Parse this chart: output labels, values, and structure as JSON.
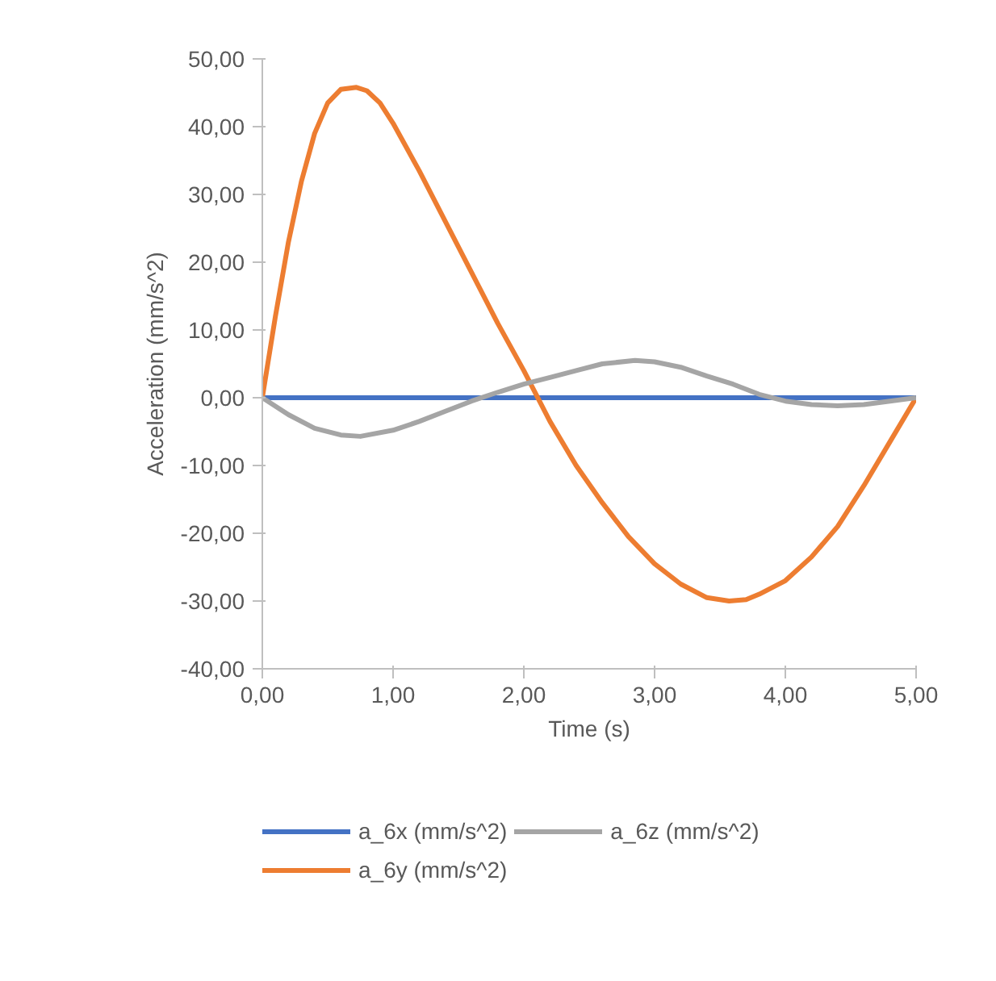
{
  "chart_data": {
    "type": "line",
    "xlabel": "Time (s)",
    "ylabel": "Acceleration (mm/s^2)",
    "xlim": [
      0,
      5
    ],
    "xticks": [
      {
        "value": 0,
        "label": "0,00"
      },
      {
        "value": 1,
        "label": "1,00"
      },
      {
        "value": 2,
        "label": "2,00"
      },
      {
        "value": 3,
        "label": "3,00"
      },
      {
        "value": 4,
        "label": "4,00"
      },
      {
        "value": 5,
        "label": "5,00"
      }
    ],
    "ylim": [
      -40,
      50
    ],
    "yticks": [
      {
        "value": -40,
        "label": "-40,00"
      },
      {
        "value": -30,
        "label": "-30,00"
      },
      {
        "value": -20,
        "label": "-20,00"
      },
      {
        "value": -10,
        "label": "-10,00"
      },
      {
        "value": 0,
        "label": "0,00"
      },
      {
        "value": 10,
        "label": "10,00"
      },
      {
        "value": 20,
        "label": "20,00"
      },
      {
        "value": 30,
        "label": "30,00"
      },
      {
        "value": 40,
        "label": "40,00"
      },
      {
        "value": 50,
        "label": "50,00"
      }
    ],
    "grid": false,
    "legend": "bottom",
    "marker": "none",
    "line_style": "solid",
    "series": [
      {
        "name": "a_6x (mm/s^2)",
        "color": "#4472c4",
        "x": [
          0,
          1,
          2,
          3,
          4,
          5
        ],
        "values": [
          0,
          0,
          0,
          0,
          0,
          0
        ]
      },
      {
        "name": "a_6y (mm/s^2)",
        "color": "#ed7d31",
        "x": [
          0,
          0.1,
          0.2,
          0.3,
          0.4,
          0.5,
          0.6,
          0.72,
          0.8,
          0.9,
          1.0,
          1.2,
          1.4,
          1.6,
          1.8,
          2.0,
          2.2,
          2.4,
          2.6,
          2.8,
          3.0,
          3.2,
          3.4,
          3.57,
          3.7,
          3.8,
          4.0,
          4.2,
          4.4,
          4.6,
          4.8,
          5.0
        ],
        "values": [
          0,
          12,
          23,
          32,
          39,
          43.5,
          45.5,
          45.8,
          45.3,
          43.5,
          40.5,
          33.5,
          26,
          18.5,
          11,
          4,
          -3.5,
          -10,
          -15.5,
          -20.5,
          -24.5,
          -27.5,
          -29.5,
          -30,
          -29.8,
          -29,
          -27,
          -23.5,
          -19,
          -13,
          -6.5,
          0
        ]
      },
      {
        "name": "a_6z (mm/s^2)",
        "color": "#a5a5a5",
        "x": [
          0,
          0.2,
          0.4,
          0.6,
          0.75,
          1.0,
          1.2,
          1.4,
          1.6,
          1.8,
          2.0,
          2.2,
          2.4,
          2.6,
          2.85,
          3.0,
          3.2,
          3.4,
          3.6,
          3.8,
          4.0,
          4.2,
          4.4,
          4.6,
          4.8,
          5.0
        ],
        "values": [
          0,
          -2.5,
          -4.5,
          -5.5,
          -5.7,
          -4.8,
          -3.5,
          -2,
          -0.5,
          0.8,
          2,
          3,
          4,
          5,
          5.5,
          5.3,
          4.5,
          3.2,
          2,
          0.5,
          -0.5,
          -1.0,
          -1.2,
          -1,
          -0.5,
          0
        ]
      }
    ]
  }
}
